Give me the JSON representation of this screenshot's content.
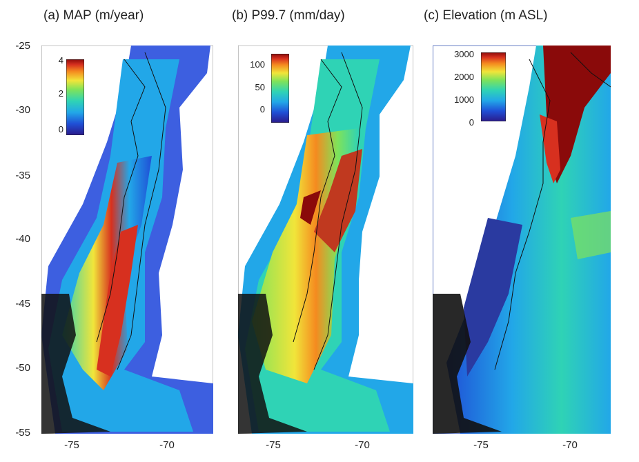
{
  "panels": [
    {
      "title": "(a) MAP (m/year)",
      "colorbar_ticks": [
        "4",
        "2",
        "0"
      ],
      "x_ticks": [
        "-75",
        "-70"
      ]
    },
    {
      "title": "(b) P99.7 (mm/day)",
      "colorbar_ticks": [
        "100",
        "50",
        "0"
      ],
      "x_ticks": [
        "-75",
        "-70"
      ]
    },
    {
      "title": "(c) Elevation (m ASL)",
      "colorbar_ticks": [
        "3000",
        "2000",
        "1000",
        "0"
      ],
      "x_ticks": [
        "-75",
        "-70"
      ]
    }
  ],
  "y_ticks": [
    "-25",
    "-30",
    "-35",
    "-40",
    "-45",
    "-50",
    "-55"
  ],
  "colormap": [
    "#2b1a8a",
    "#1f4fd6",
    "#22a7e8",
    "#2fd3b5",
    "#7fe35a",
    "#f1e53a",
    "#f58a1f",
    "#d7301f",
    "#8a0a0a"
  ]
}
